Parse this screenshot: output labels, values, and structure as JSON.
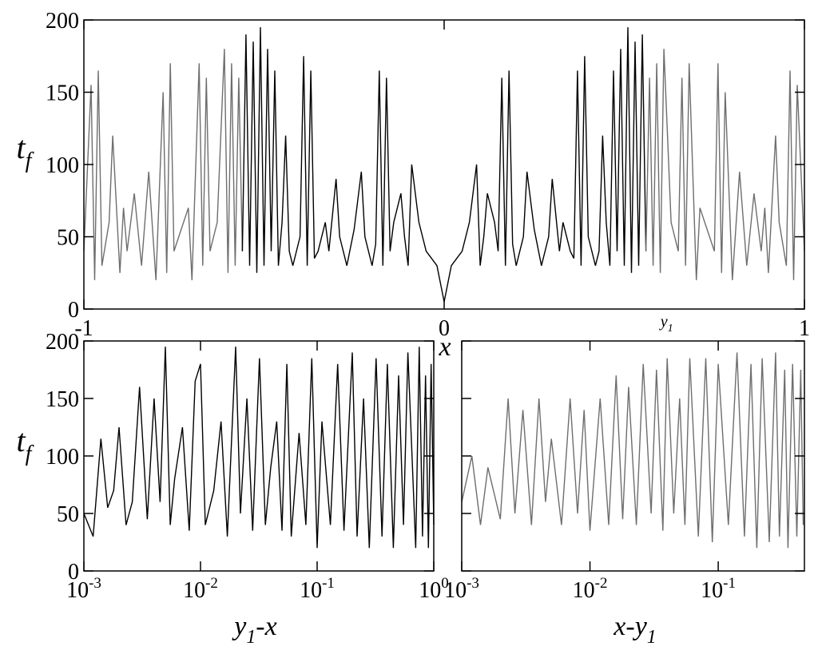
{
  "chart_data": [
    {
      "type": "line",
      "xscale": "linear",
      "xlim": [
        -1,
        1
      ],
      "ylim": [
        0,
        200
      ],
      "xticks": [
        -1,
        0,
        1
      ],
      "yticks": [
        0,
        50,
        100,
        150,
        200
      ],
      "ytick_labels": true,
      "xlabel": [
        {
          "text": "x"
        }
      ],
      "ylabel": [
        {
          "text": "t"
        },
        {
          "text": "f",
          "sub": true
        }
      ],
      "annotations": [
        {
          "x": 0.618,
          "parts": [
            {
              "text": "y"
            },
            {
              "text": "1",
              "sub": true
            }
          ]
        }
      ],
      "series": [
        {
          "color": "#6e6e6e",
          "x": [
            -1,
            -0.98,
            -0.97,
            -0.96,
            -0.95,
            -0.93,
            -0.92,
            -0.9,
            -0.89,
            -0.88,
            -0.86,
            -0.84,
            -0.82,
            -0.8,
            -0.78,
            -0.77,
            -0.76,
            -0.75,
            -0.73,
            -0.71,
            -0.7,
            -0.68,
            -0.67,
            -0.66,
            -0.65,
            -0.63,
            -0.61,
            -0.6,
            -0.59,
            -0.58,
            -0.57,
            -0.56
          ],
          "values": [
            40,
            155,
            20,
            165,
            30,
            60,
            120,
            25,
            70,
            40,
            80,
            30,
            95,
            20,
            150,
            25,
            170,
            40,
            55,
            70,
            20,
            170,
            30,
            160,
            40,
            60,
            180,
            25,
            170,
            30,
            160,
            40
          ]
        },
        {
          "color": "#000000",
          "x": [
            -0.56,
            -0.55,
            -0.54,
            -0.53,
            -0.52,
            -0.51,
            -0.5,
            -0.49,
            -0.48,
            -0.47,
            -0.46,
            -0.45,
            -0.44,
            -0.43,
            -0.42,
            -0.4,
            -0.39,
            -0.38,
            -0.37,
            -0.36,
            -0.35,
            -0.33,
            -0.32,
            -0.3,
            -0.29,
            -0.27,
            -0.25,
            -0.23,
            -0.22,
            -0.2,
            -0.19,
            -0.18,
            -0.17,
            -0.16,
            -0.15,
            -0.14,
            -0.12,
            -0.11,
            -0.1,
            -0.09,
            -0.07,
            -0.05,
            -0.02,
            0,
            0.02,
            0.05,
            0.07,
            0.09,
            0.1,
            0.11,
            0.12,
            0.14,
            0.15,
            0.16,
            0.17,
            0.18,
            0.19,
            0.2,
            0.22,
            0.23,
            0.25,
            0.27,
            0.29,
            0.3,
            0.32,
            0.33,
            0.35,
            0.36,
            0.37,
            0.38,
            0.39,
            0.4,
            0.42,
            0.43,
            0.44,
            0.45,
            0.46,
            0.47,
            0.48,
            0.49,
            0.5,
            0.51,
            0.52,
            0.53,
            0.54,
            0.55,
            0.56
          ],
          "values": [
            40,
            190,
            30,
            185,
            25,
            195,
            30,
            180,
            40,
            165,
            30,
            60,
            120,
            40,
            30,
            50,
            175,
            30,
            165,
            35,
            40,
            60,
            40,
            90,
            50,
            30,
            55,
            95,
            50,
            30,
            45,
            165,
            30,
            160,
            40,
            60,
            80,
            50,
            30,
            100,
            60,
            40,
            30,
            5,
            30,
            40,
            60,
            100,
            30,
            50,
            80,
            60,
            40,
            160,
            30,
            165,
            45,
            30,
            50,
            95,
            55,
            30,
            50,
            90,
            40,
            60,
            40,
            35,
            165,
            30,
            175,
            50,
            30,
            40,
            120,
            60,
            30,
            165,
            40,
            180,
            30,
            195,
            25,
            185,
            30,
            190,
            40
          ]
        },
        {
          "color": "#6e6e6e",
          "x": [
            0.56,
            0.57,
            0.58,
            0.59,
            0.6,
            0.61,
            0.63,
            0.65,
            0.66,
            0.67,
            0.68,
            0.7,
            0.71,
            0.73,
            0.75,
            0.76,
            0.77,
            0.78,
            0.8,
            0.82,
            0.84,
            0.86,
            0.88,
            0.89,
            0.9,
            0.92,
            0.93,
            0.95,
            0.96,
            0.97,
            0.98,
            1
          ],
          "values": [
            40,
            160,
            30,
            170,
            25,
            180,
            60,
            40,
            160,
            30,
            170,
            20,
            70,
            55,
            40,
            170,
            25,
            150,
            20,
            95,
            30,
            80,
            40,
            70,
            25,
            120,
            60,
            30,
            165,
            20,
            155,
            40
          ]
        }
      ]
    },
    {
      "type": "line",
      "xscale": "log",
      "xlim": [
        0.001,
        1
      ],
      "ylim": [
        0,
        200
      ],
      "xticks": [
        {
          "value": 0.001,
          "label": "10",
          "exponent": "-3"
        },
        {
          "value": 0.01,
          "label": "10",
          "exponent": "-2"
        },
        {
          "value": 0.1,
          "label": "10",
          "exponent": "-1"
        },
        {
          "value": 1,
          "label": "10",
          "exponent": "0"
        }
      ],
      "yticks": [
        0,
        50,
        100,
        150,
        200
      ],
      "ytick_labels": true,
      "xlabel": [
        {
          "text": "y"
        },
        {
          "text": "1",
          "sub": true
        },
        {
          "text": "-x"
        }
      ],
      "ylabel": [
        {
          "text": "t"
        },
        {
          "text": "f",
          "sub": true
        }
      ],
      "series": [
        {
          "color": "#000000",
          "x": [
            0.001,
            0.0012,
            0.0014,
            0.0016,
            0.0018,
            0.002,
            0.0023,
            0.0026,
            0.003,
            0.0035,
            0.004,
            0.0045,
            0.005,
            0.0055,
            0.006,
            0.007,
            0.008,
            0.009,
            0.01,
            0.011,
            0.013,
            0.015,
            0.017,
            0.02,
            0.022,
            0.025,
            0.028,
            0.032,
            0.036,
            0.04,
            0.045,
            0.05,
            0.055,
            0.06,
            0.07,
            0.08,
            0.09,
            0.1,
            0.11,
            0.13,
            0.15,
            0.17,
            0.2,
            0.22,
            0.25,
            0.28,
            0.32,
            0.36,
            0.4,
            0.45,
            0.5,
            0.55,
            0.6,
            0.7,
            0.75,
            0.8,
            0.85,
            0.9,
            0.95,
            1
          ],
          "values": [
            50,
            30,
            115,
            55,
            70,
            125,
            40,
            60,
            160,
            45,
            150,
            60,
            195,
            40,
            80,
            125,
            35,
            165,
            180,
            40,
            70,
            130,
            30,
            195,
            50,
            150,
            35,
            185,
            40,
            90,
            130,
            35,
            180,
            30,
            120,
            40,
            185,
            20,
            130,
            40,
            180,
            35,
            190,
            30,
            150,
            20,
            185,
            30,
            180,
            20,
            170,
            40,
            190,
            20,
            195,
            30,
            170,
            20,
            180,
            40
          ]
        }
      ]
    },
    {
      "type": "line",
      "xscale": "log",
      "xlim": [
        0.001,
        0.47
      ],
      "ylim": [
        0,
        200
      ],
      "xticks": [
        {
          "value": 0.001,
          "label": "10",
          "exponent": "-3"
        },
        {
          "value": 0.01,
          "label": "10",
          "exponent": "-2"
        },
        {
          "value": 0.1,
          "label": "10",
          "exponent": "-1"
        }
      ],
      "yticks": [
        0,
        50,
        100,
        150,
        200
      ],
      "ytick_labels": false,
      "xlabel": [
        {
          "text": "x-y"
        },
        {
          "text": "1",
          "sub": true
        }
      ],
      "series": [
        {
          "color": "#6e6e6e",
          "x": [
            0.001,
            0.0012,
            0.0014,
            0.0016,
            0.002,
            0.0023,
            0.0026,
            0.003,
            0.0035,
            0.004,
            0.0045,
            0.005,
            0.006,
            0.007,
            0.008,
            0.009,
            0.01,
            0.012,
            0.014,
            0.016,
            0.018,
            0.02,
            0.023,
            0.026,
            0.03,
            0.033,
            0.037,
            0.04,
            0.045,
            0.05,
            0.055,
            0.06,
            0.07,
            0.08,
            0.09,
            0.1,
            0.12,
            0.14,
            0.16,
            0.18,
            0.2,
            0.22,
            0.25,
            0.28,
            0.3,
            0.33,
            0.35,
            0.38,
            0.41,
            0.44,
            0.46
          ],
          "values": [
            60,
            100,
            40,
            90,
            45,
            150,
            50,
            140,
            40,
            150,
            60,
            115,
            40,
            150,
            50,
            140,
            35,
            150,
            40,
            170,
            45,
            160,
            40,
            180,
            50,
            175,
            35,
            185,
            50,
            150,
            40,
            185,
            30,
            185,
            25,
            180,
            40,
            190,
            30,
            180,
            20,
            185,
            25,
            190,
            30,
            175,
            20,
            180,
            30,
            175,
            40
          ]
        }
      ]
    }
  ]
}
